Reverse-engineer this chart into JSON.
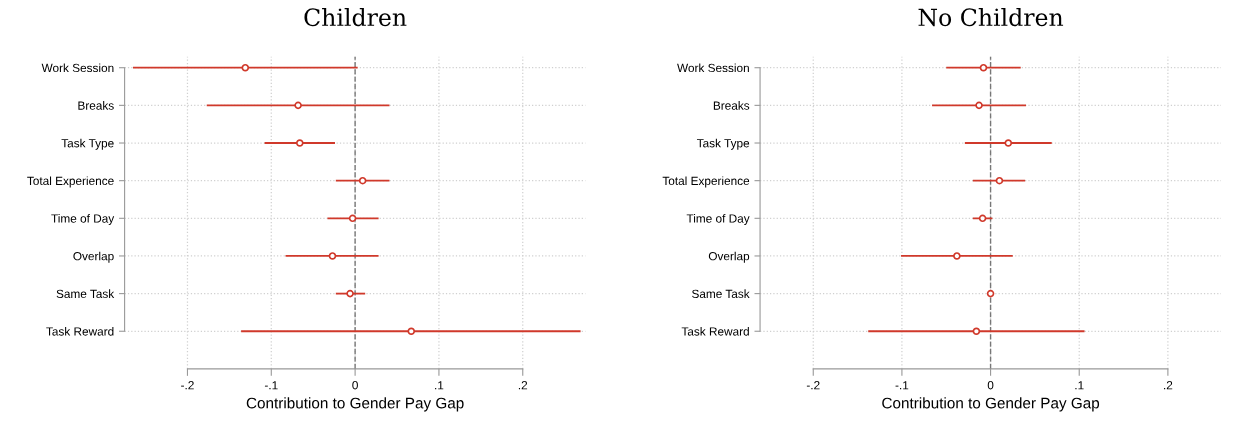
{
  "chart_data": [
    {
      "type": "scatter",
      "title": "Children",
      "xlabel": "Contribution to Gender Pay Gap",
      "orientation": "horizontal",
      "categories": [
        "Work Session",
        "Breaks",
        "Task Type",
        "Total Experience",
        "Time of Day",
        "Overlap",
        "Same Task",
        "Task Reward"
      ],
      "series": [
        {
          "color": "#d0392b",
          "values": [
            -0.131,
            -0.068,
            -0.066,
            0.009,
            -0.003,
            -0.027,
            -0.006,
            0.067
          ],
          "errors": [
            [
              -0.265,
              0.003
            ],
            [
              -0.177,
              0.041
            ],
            [
              -0.108,
              -0.024
            ],
            [
              -0.023,
              0.041
            ],
            [
              -0.033,
              0.028
            ],
            [
              -0.083,
              0.028
            ],
            [
              -0.023,
              0.012
            ],
            [
              -0.136,
              0.269
            ]
          ]
        }
      ],
      "xlim": [
        -0.275,
        0.275
      ],
      "xticks": [
        {
          "value": -0.2,
          "label": "-.2"
        },
        {
          "value": -0.1,
          "label": "-.1"
        },
        0,
        {
          "value": 0.1,
          "label": ".1"
        },
        {
          "value": 0.2,
          "label": ".2"
        }
      ],
      "ref_lines": [
        {
          "axis": "x",
          "value": 0,
          "color": "#777777",
          "line_style": "dashed"
        }
      ],
      "grid": true,
      "marker": "circle"
    },
    {
      "type": "scatter",
      "title": "No Children",
      "xlabel": "Contribution to Gender Pay Gap",
      "orientation": "horizontal",
      "categories": [
        "Work Session",
        "Breaks",
        "Task Type",
        "Total Experience",
        "Time of Day",
        "Overlap",
        "Same Task",
        "Task Reward"
      ],
      "series": [
        {
          "color": "#d0392b",
          "values": [
            -0.008,
            -0.013,
            0.02,
            0.01,
            -0.009,
            -0.038,
            0.0,
            -0.016
          ],
          "errors": [
            [
              -0.05,
              0.034
            ],
            [
              -0.066,
              0.04
            ],
            [
              -0.029,
              0.069
            ],
            [
              -0.02,
              0.039
            ],
            [
              -0.02,
              0.002
            ],
            [
              -0.101,
              0.025
            ],
            null,
            [
              -0.138,
              0.106
            ]
          ]
        }
      ],
      "xlim": [
        -0.26,
        0.26
      ],
      "xticks": [
        {
          "value": -0.2,
          "label": "-.2"
        },
        {
          "value": -0.1,
          "label": "-.1"
        },
        0,
        {
          "value": 0.1,
          "label": ".1"
        },
        {
          "value": 0.2,
          "label": ".2"
        }
      ],
      "ref_lines": [
        {
          "axis": "x",
          "value": 0,
          "color": "#777777",
          "line_style": "dashed"
        }
      ],
      "grid": true,
      "marker": "circle"
    }
  ]
}
